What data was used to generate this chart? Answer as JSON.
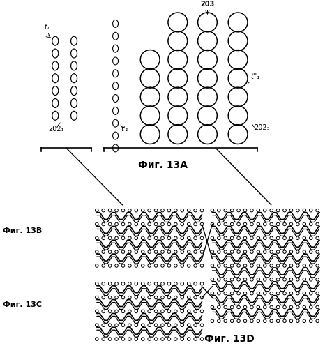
{
  "fig_width": 4.66,
  "fig_height": 4.99,
  "dpi": 100,
  "bg_color": "white",
  "label_13A": "Фиг. 13A",
  "label_13B": "Фиг. 13B",
  "label_13C": "Фиг. 13C",
  "label_13D": "Фиг. 13D",
  "label_202_1": "202₁",
  "label_202_3": "202₃",
  "label_203": "203",
  "label_t1": "t₁",
  "label_t1_prime": "t'₁",
  "label_t1_doubleprime": "t''₁"
}
